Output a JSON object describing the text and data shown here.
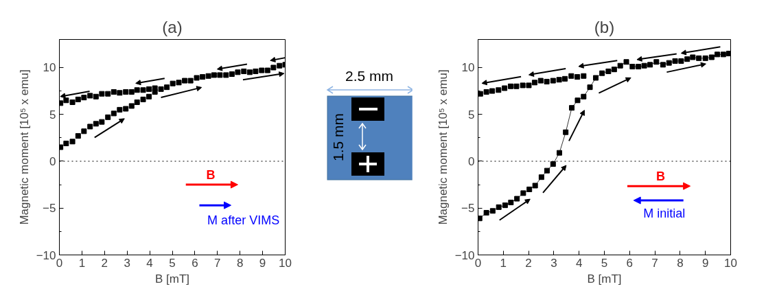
{
  "chart_data": [
    {
      "type": "scatter",
      "title": "(a)",
      "xlabel": "B [mT]",
      "ylabel": "Magnetic moment [10⁵ x emu]",
      "xlim": [
        0,
        10
      ],
      "ylim": [
        -10,
        13
      ],
      "xticks": [
        0,
        1,
        2,
        3,
        4,
        5,
        6,
        7,
        8,
        9,
        10
      ],
      "yticks": [
        -10,
        -5,
        0,
        5,
        10
      ],
      "marker": "square",
      "ref_lines": [
        {
          "axis": "y",
          "value": 0,
          "color": "#000000",
          "line_style": "dotted"
        }
      ],
      "annotations": [
        "B",
        "M after VIMS"
      ],
      "series": [
        {
          "color": "#000000",
          "x": [
            0.05,
            0.3,
            0.58,
            0.83,
            1.09,
            1.36,
            1.62,
            1.88,
            2.15,
            2.41,
            2.67,
            2.94,
            3.2,
            3.44,
            3.71,
            3.97,
            4.23,
            4.5,
            4.76,
            5.02,
            5.29,
            5.55,
            5.81,
            6.08,
            6.34,
            6.6,
            6.85,
            7.11,
            7.38,
            7.64,
            7.9,
            8.17,
            8.43,
            8.69,
            8.96,
            9.22,
            9.48,
            9.75,
            10.0
          ],
          "values": [
            1.5,
            1.9,
            2.1,
            2.7,
            3.2,
            3.7,
            4.0,
            4.2,
            4.7,
            5.1,
            5.5,
            5.6,
            5.9,
            6.3,
            6.6,
            6.9,
            7.4,
            7.7,
            7.9,
            8.3,
            8.4,
            8.6,
            8.6,
            8.9,
            9.0,
            9.1,
            9.2,
            9.2,
            9.2,
            9.3,
            9.5,
            9.6,
            9.5,
            9.6,
            9.7,
            9.7,
            10.0,
            10.2,
            10.3
          ]
        },
        {
          "color": "#000000",
          "x": [
            0.05,
            0.3,
            0.58,
            0.83,
            1.09,
            1.36,
            1.62,
            1.88,
            2.15,
            2.41,
            2.67,
            2.94,
            3.2,
            3.44,
            3.71,
            3.97,
            4.23
          ],
          "values": [
            6.2,
            6.5,
            6.3,
            6.6,
            6.8,
            7.0,
            6.9,
            7.2,
            7.2,
            7.4,
            7.3,
            7.4,
            7.4,
            7.6,
            7.6,
            7.7,
            7.8
          ]
        }
      ]
    },
    {
      "type": "other",
      "annotations": [
        "2.5 mm",
        "1.5 mm"
      ]
    },
    {
      "type": "scatter",
      "title": "(b)",
      "xlabel": "B [mT]",
      "ylabel": "Magnetic moment [10⁵ x emu]",
      "xlim": [
        0,
        10
      ],
      "ylim": [
        -10,
        13
      ],
      "xticks": [
        0,
        1,
        2,
        3,
        4,
        5,
        6,
        7,
        8,
        9,
        10
      ],
      "yticks": [
        -10,
        -5,
        0,
        5,
        10
      ],
      "marker": "square",
      "ref_lines": [
        {
          "axis": "y",
          "value": 0,
          "color": "#000000",
          "line_style": "dotted"
        }
      ],
      "annotations": [
        "B",
        "M initial"
      ],
      "series": [
        {
          "type": "line",
          "color": "#000000",
          "x": [
            0.06,
            0.33,
            0.58,
            0.82,
            1.07,
            1.3,
            1.54,
            1.79,
            2.03,
            2.26,
            2.51,
            2.73,
            2.97,
            3.22,
            3.47,
            3.71,
            3.94,
            4.18,
            4.43,
            4.66,
            4.91,
            5.16,
            5.39,
            5.63,
            5.87,
            6.11,
            6.35,
            6.58,
            6.81,
            7.06,
            7.32,
            7.56,
            7.8,
            8.04,
            8.28,
            8.5,
            8.74,
            9.0,
            9.25,
            9.47,
            9.71,
            9.93
          ],
          "values": [
            -6.1,
            -5.5,
            -5.3,
            -4.9,
            -4.7,
            -4.4,
            -4.0,
            -3.4,
            -3.0,
            -2.6,
            -1.7,
            -1.0,
            -0.3,
            0.9,
            3.1,
            5.7,
            6.5,
            6.9,
            7.9,
            8.9,
            9.4,
            9.6,
            9.8,
            10.2,
            10.6,
            10.1,
            10.1,
            10.2,
            10.3,
            10.6,
            10.3,
            10.5,
            10.7,
            10.7,
            10.9,
            11.1,
            11.0,
            11.0,
            11.1,
            11.4,
            11.4,
            11.5
          ]
        },
        {
          "color": "#000000",
          "x": [
            0.09,
            0.33,
            0.56,
            0.81,
            1.05,
            1.29,
            1.52,
            1.77,
            2.01,
            2.24,
            2.48,
            2.72,
            2.97,
            3.21,
            3.44,
            3.69,
            3.93,
            4.18
          ],
          "values": [
            7.2,
            7.4,
            7.5,
            7.6,
            7.8,
            8.0,
            8.0,
            8.1,
            8.1,
            8.4,
            8.6,
            8.5,
            8.6,
            8.7,
            8.8,
            9.1,
            9.0,
            9.1
          ]
        }
      ]
    }
  ]
}
